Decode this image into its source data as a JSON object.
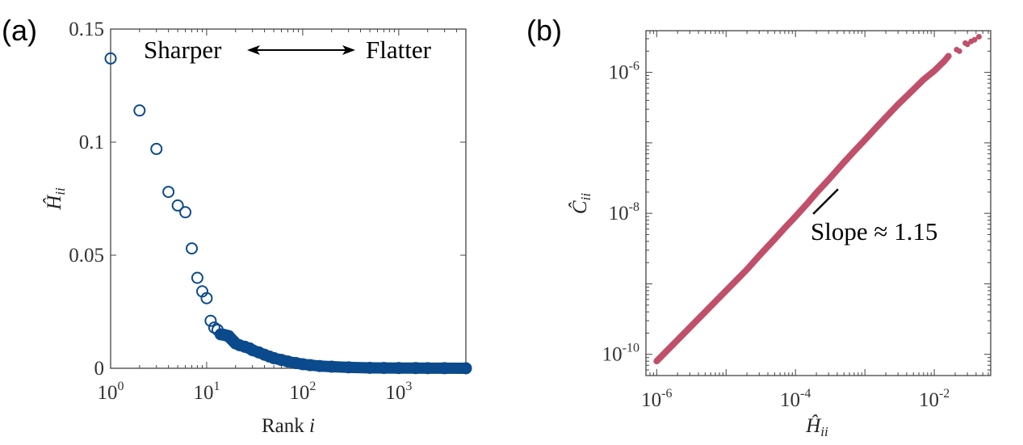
{
  "chart_data": [
    {
      "panel_label": "(a)",
      "type": "scatter",
      "marker": "open-circle",
      "color": "#0b4a8c",
      "xscale": "log",
      "xlim": [
        1,
        5000
      ],
      "ylim": [
        0,
        0.15
      ],
      "xticks": [
        1,
        10,
        100,
        1000
      ],
      "xtick_labels": [
        "10^0",
        "10^1",
        "10^2",
        "10^3"
      ],
      "yticks": [
        0,
        0.05,
        0.1,
        0.15
      ],
      "ytick_labels": [
        "0",
        "0.05",
        "0.1",
        "0.15"
      ],
      "xlabel": "Rank",
      "xlabel_var": "i",
      "ylabel_symbol": "Ĥ",
      "ylabel_sub": "ii",
      "annotation_left": "Sharper",
      "annotation_right": "Flatter",
      "annotation_arrow": "double-headed",
      "points": [
        [
          1,
          0.137
        ],
        [
          2,
          0.114
        ],
        [
          3,
          0.097
        ],
        [
          4,
          0.078
        ],
        [
          5,
          0.072
        ],
        [
          6,
          0.069
        ],
        [
          7,
          0.053
        ],
        [
          8,
          0.04
        ],
        [
          9,
          0.034
        ],
        [
          10,
          0.031
        ],
        [
          11,
          0.021
        ],
        [
          12,
          0.018
        ],
        [
          13,
          0.017
        ],
        [
          14,
          0.015
        ],
        [
          15,
          0.0148
        ],
        [
          16,
          0.0145
        ],
        [
          17,
          0.0142
        ],
        [
          18,
          0.013
        ],
        [
          19,
          0.012
        ],
        [
          20,
          0.011
        ],
        [
          22,
          0.0102
        ],
        [
          25,
          0.0095
        ],
        [
          28,
          0.0088
        ],
        [
          30,
          0.008
        ],
        [
          35,
          0.007
        ],
        [
          40,
          0.006
        ],
        [
          45,
          0.0052
        ],
        [
          50,
          0.0045
        ],
        [
          60,
          0.0037
        ],
        [
          70,
          0.003
        ],
        [
          85,
          0.0023
        ],
        [
          100,
          0.0018
        ],
        [
          120,
          0.0014
        ],
        [
          150,
          0.001
        ],
        [
          200,
          0.0007
        ],
        [
          300,
          0.0004
        ],
        [
          500,
          0.0002
        ],
        [
          700,
          0.00015
        ],
        [
          1000,
          0.0001
        ],
        [
          1500,
          7e-05
        ],
        [
          2000,
          5e-05
        ],
        [
          3000,
          3e-05
        ],
        [
          5000,
          1e-05
        ]
      ]
    },
    {
      "panel_label": "(b)",
      "type": "scatter",
      "marker": "filled-dot",
      "color": "#c0506a",
      "xscale": "log",
      "yscale": "log",
      "xlim": [
        7e-07,
        0.065
      ],
      "ylim": [
        5e-11,
        3.9e-06
      ],
      "xticks": [
        1e-06,
        0.0001,
        0.01
      ],
      "xtick_labels": [
        "10^-6",
        "10^-4",
        "10^-2"
      ],
      "yticks": [
        1e-10,
        1e-08,
        1e-06
      ],
      "ytick_labels": [
        "10^-10",
        "10^-8",
        "10^-6"
      ],
      "xlabel_symbol": "Ĥ",
      "xlabel_sub": "ii",
      "ylabel_symbol": "Ĉ",
      "ylabel_sub": "ii",
      "annotation": "Slope ≈ 1.15",
      "slope_line": [
        [
          0.00018,
          9.8e-09
        ],
        [
          0.00041,
          2.2e-08
        ]
      ],
      "points": [
        [
          1e-06,
          8e-11
        ],
        [
          1.5e-06,
          1.2e-10
        ],
        [
          2e-06,
          1.6e-10
        ],
        [
          3e-06,
          2.4e-10
        ],
        [
          5e-06,
          4e-10
        ],
        [
          7e-06,
          5.6e-10
        ],
        [
          1e-05,
          8e-10
        ],
        [
          1.5e-05,
          1.2e-09
        ],
        [
          2e-05,
          1.6e-09
        ],
        [
          3e-05,
          2.5e-09
        ],
        [
          5e-05,
          4.3e-09
        ],
        [
          7e-05,
          6.2e-09
        ],
        [
          0.0001,
          9e-09
        ],
        [
          0.00015,
          1.4e-08
        ],
        [
          0.0002,
          1.95e-08
        ],
        [
          0.0003,
          3e-08
        ],
        [
          0.0005,
          5.3e-08
        ],
        [
          0.0007,
          7.6e-08
        ],
        [
          0.001,
          1.1e-07
        ],
        [
          0.0015,
          1.7e-07
        ],
        [
          0.002,
          2.3e-07
        ],
        [
          0.003,
          3.5e-07
        ],
        [
          0.004,
          4.6e-07
        ],
        [
          0.005,
          5.7e-07
        ],
        [
          0.006,
          6.8e-07
        ],
        [
          0.007,
          7.9e-07
        ],
        [
          0.008,
          8.8e-07
        ],
        [
          0.01,
          1.05e-06
        ],
        [
          0.012,
          1.25e-06
        ],
        [
          0.014,
          1.45e-06
        ],
        [
          0.016,
          1.7e-06
        ],
        [
          0.021,
          2.1e-06
        ],
        [
          0.023,
          2e-06
        ],
        [
          0.028,
          2.6e-06
        ],
        [
          0.03,
          2.5e-06
        ],
        [
          0.034,
          2.75e-06
        ],
        [
          0.038,
          2.9e-06
        ],
        [
          0.044,
          3.2e-06
        ]
      ]
    }
  ]
}
